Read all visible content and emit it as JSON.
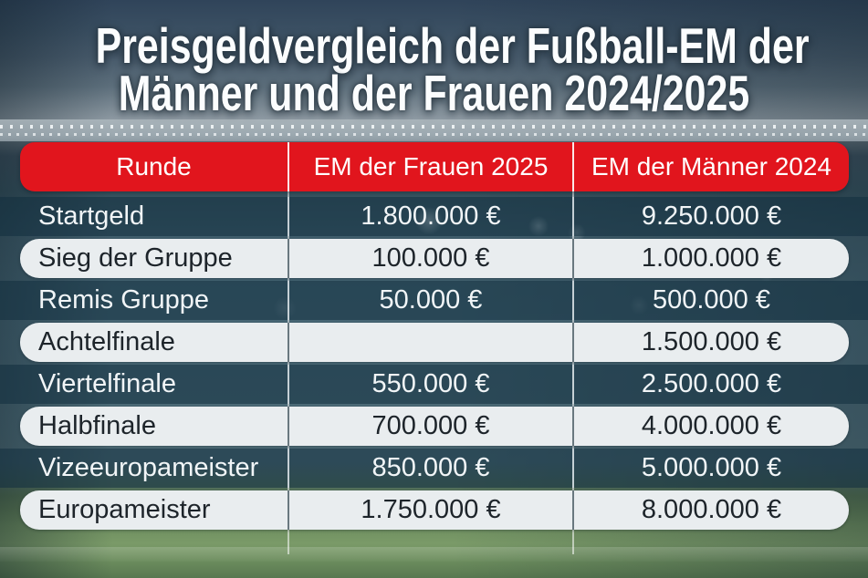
{
  "title_lines": [
    "Preisgeldvergleich der Fußball-EM der",
    "Männer und der Frauen 2024/2025"
  ],
  "chart_data": {
    "type": "table",
    "title": "Preisgeldvergleich der Fußball-EM der Männer und der Frauen 2024/2025",
    "columns": [
      "Runde",
      "EM der Frauen 2025",
      "EM der Männer 2024"
    ],
    "rows": [
      [
        "Startgeld",
        "1.800.000 €",
        "9.250.000 €"
      ],
      [
        "Sieg der Gruppe",
        "100.000 €",
        "1.000.000 €"
      ],
      [
        "Remis Gruppe",
        "50.000 €",
        "500.000 €"
      ],
      [
        "Achtelfinale",
        "",
        "1.500.000 €"
      ],
      [
        "Viertelfinale",
        "550.000 €",
        "2.500.000 €"
      ],
      [
        "Halbfinale",
        "700.000 €",
        "4.000.000 €"
      ],
      [
        "Vizeeuropameister",
        "850.000 €",
        "5.000.000 €"
      ],
      [
        "Europameister",
        "1.750.000 €",
        "8.000.000 €"
      ]
    ],
    "values_eur": {
      "em_der_frauen_2025": [
        1800000,
        100000,
        50000,
        null,
        550000,
        700000,
        850000,
        1750000
      ],
      "em_der_maenner_2024": [
        9250000,
        1000000,
        500000,
        1500000,
        2500000,
        4000000,
        5000000,
        8000000
      ]
    },
    "currency": "EUR",
    "legend_position": "none",
    "grid": false
  },
  "colors": {
    "header-red": "#e1151d",
    "light-row-bg": "#e9edef",
    "dark-row-overlay": "#112f3e8f",
    "light-row-text": "#1d242a",
    "dark-row-text": "#f1f5f7",
    "header-text": "#ffffff",
    "title-text": "#fbfdfe"
  }
}
